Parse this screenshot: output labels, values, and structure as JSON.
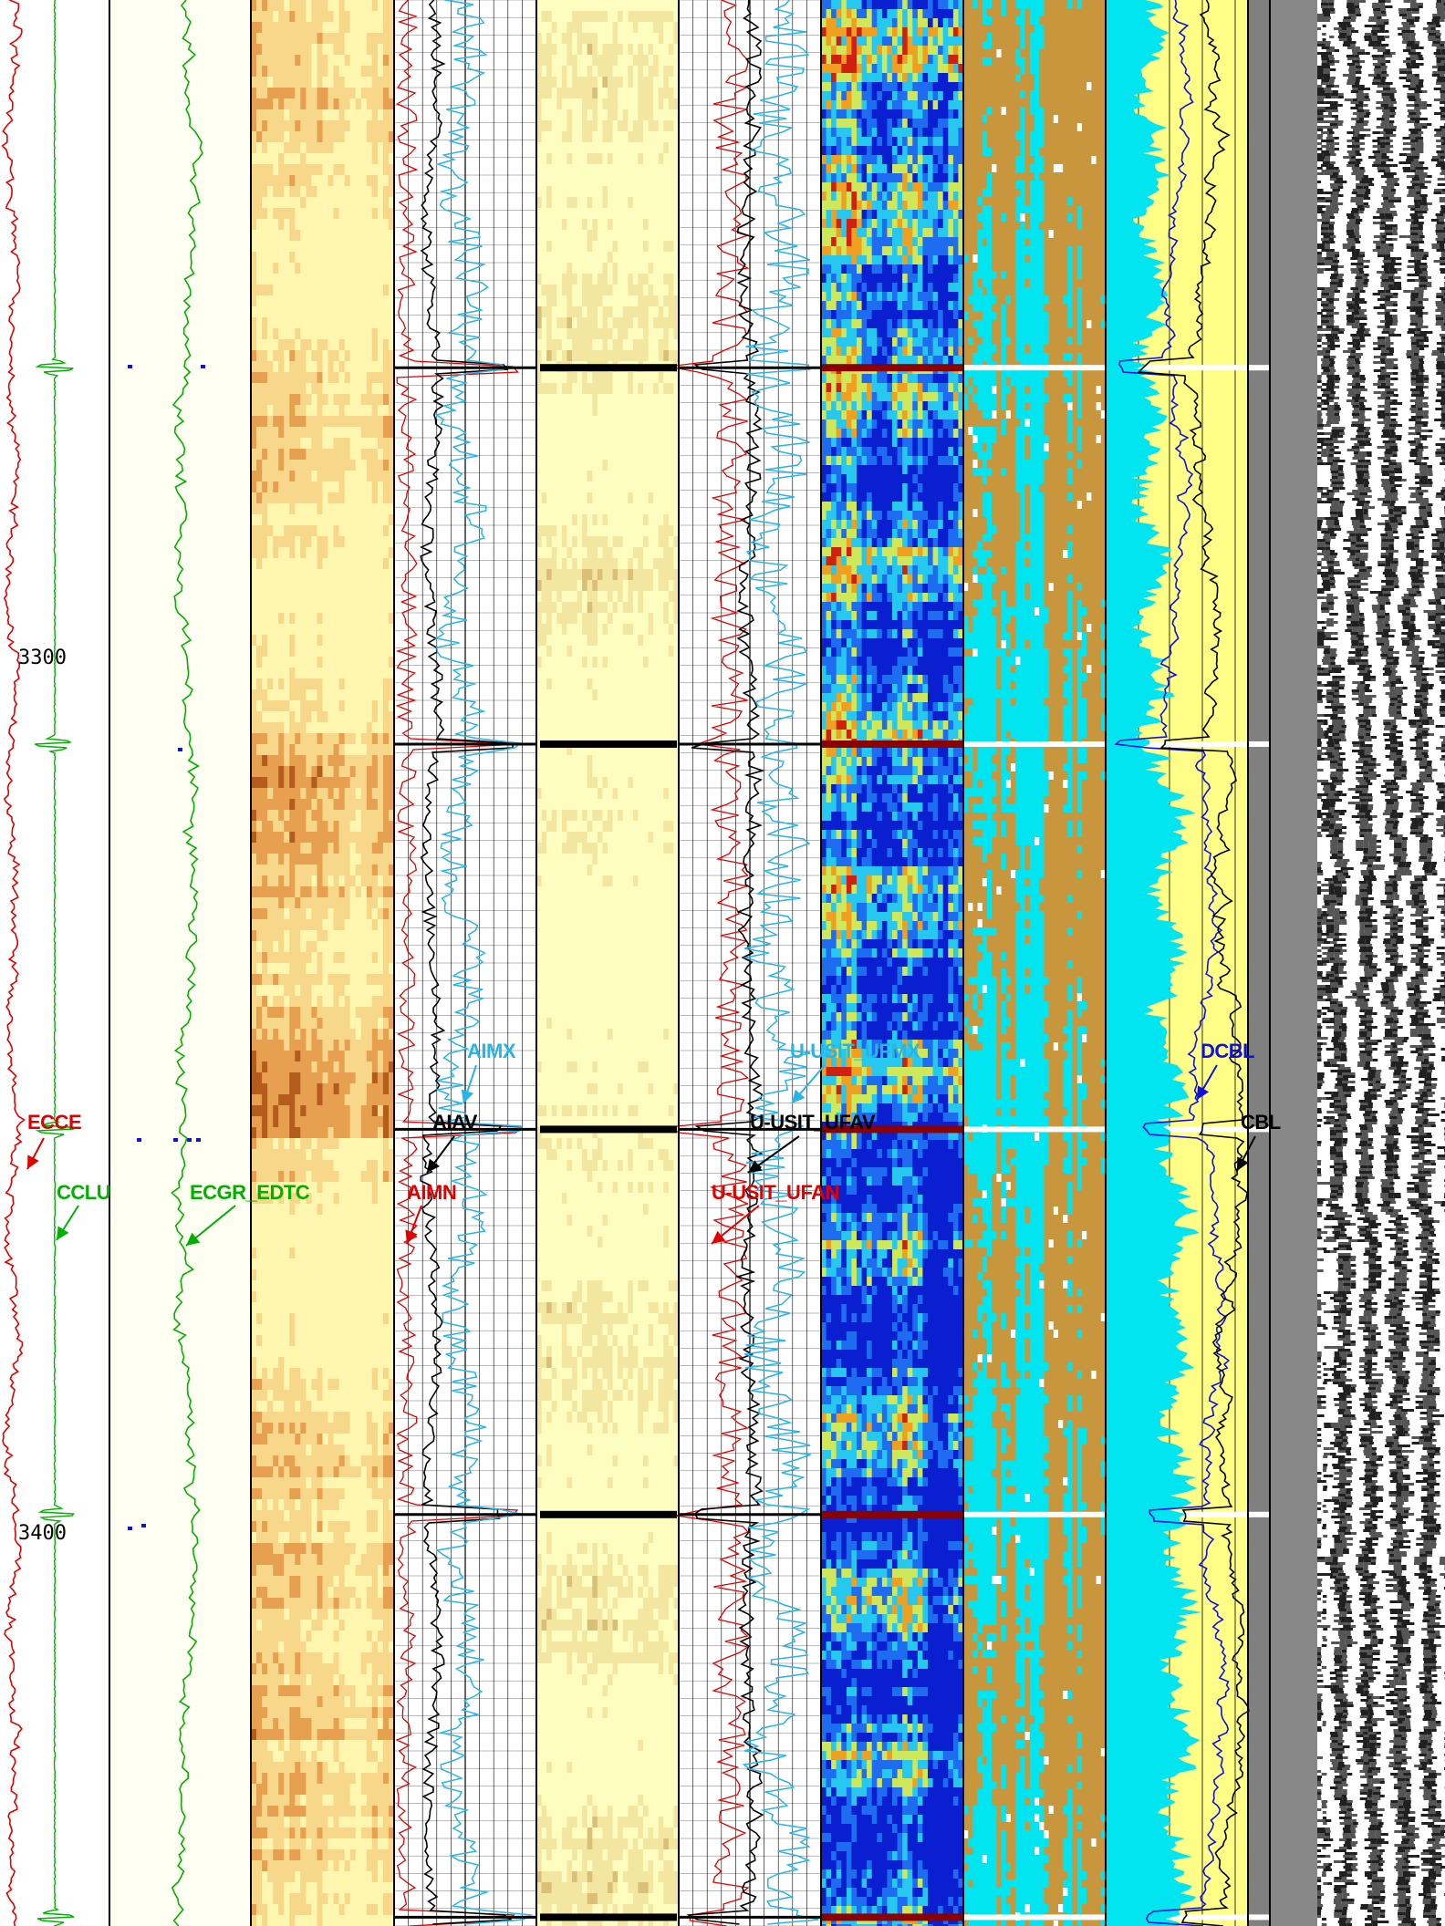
{
  "log": {
    "depth_start": 3225,
    "depth_end": 3445,
    "depth_ticks": [
      {
        "value": 3300,
        "label": "3300"
      },
      {
        "value": 3400,
        "label": "3400"
      }
    ],
    "collar_depths": [
      3267,
      3310,
      3354,
      3398,
      3444
    ],
    "tracks": [
      {
        "id": "track-1",
        "name": "depth-ccl",
        "kind": "curves"
      },
      {
        "id": "track-2",
        "name": "gamma-ray",
        "kind": "curves"
      },
      {
        "id": "track-3",
        "name": "amplitude-image",
        "kind": "image",
        "palette": [
          "#fff7b0",
          "#f7d78a",
          "#e6a050",
          "#b45c1c"
        ]
      },
      {
        "id": "track-4",
        "name": "acoustic-impedance",
        "kind": "curves-grid"
      },
      {
        "id": "track-5",
        "name": "impedance-image",
        "kind": "image",
        "palette": [
          "#fdfdc0",
          "#f2e6a0",
          "#d9bf78",
          "#a8844a"
        ]
      },
      {
        "id": "track-6",
        "name": "ultrasonic-curves",
        "kind": "curves-grid"
      },
      {
        "id": "track-7",
        "name": "ultrasonic-image",
        "kind": "image",
        "palette": [
          "#0a1fd0",
          "#1e6cf0",
          "#27c8f0",
          "#cfe85a",
          "#f0a020",
          "#d02010"
        ]
      },
      {
        "id": "track-8",
        "name": "solid-liquid-gas-map",
        "kind": "image",
        "palette": [
          "#00e5f0",
          "#c8963c",
          "#ffffff",
          "#e00000"
        ]
      },
      {
        "id": "track-9",
        "name": "cement-bond",
        "kind": "curves-fill"
      },
      {
        "id": "track-10",
        "name": "vdl",
        "kind": "waveform"
      }
    ],
    "curves": [
      {
        "name": "ECCE",
        "label": "ECCE",
        "color": "#e00000",
        "track": "track-1"
      },
      {
        "name": "CCLU",
        "label": "CCLU",
        "color": "#00b000",
        "track": "track-1"
      },
      {
        "name": "ECGR_EDTC",
        "label": "ECGR_EDTC",
        "color": "#00b000",
        "track": "track-2"
      },
      {
        "name": "AIMX",
        "label": "AIMX",
        "color": "#27b4e8",
        "track": "track-4"
      },
      {
        "name": "AIAV",
        "label": "AIAV",
        "color": "#000000",
        "track": "track-4"
      },
      {
        "name": "AIMN",
        "label": "AIMN",
        "color": "#e00000",
        "track": "track-4"
      },
      {
        "name": "U-USIT_UFMX",
        "label": "U-USIT_UFMX",
        "color": "#27b4e8",
        "track": "track-6"
      },
      {
        "name": "U-USIT_UFAV",
        "label": "U-USIT_UFAV",
        "color": "#000000",
        "track": "track-6"
      },
      {
        "name": "U-USIT_UFAN",
        "label": "U-USIT_UFAN",
        "color": "#e00000",
        "track": "track-6"
      },
      {
        "name": "DCBL",
        "label": "DCBL",
        "color": "#1010e0",
        "track": "track-9"
      },
      {
        "name": "CBL",
        "label": "CBL",
        "color": "#000000",
        "track": "track-9"
      }
    ],
    "colors": {
      "background": "#ffffff",
      "track2_background": "#fffff2",
      "track9_background": "#ffff88",
      "fill_cyan": "#00e5f0",
      "cement_brown": "#c8963c",
      "vdl_margin": "#808080",
      "collar_dark_red": "#8b0000"
    }
  }
}
